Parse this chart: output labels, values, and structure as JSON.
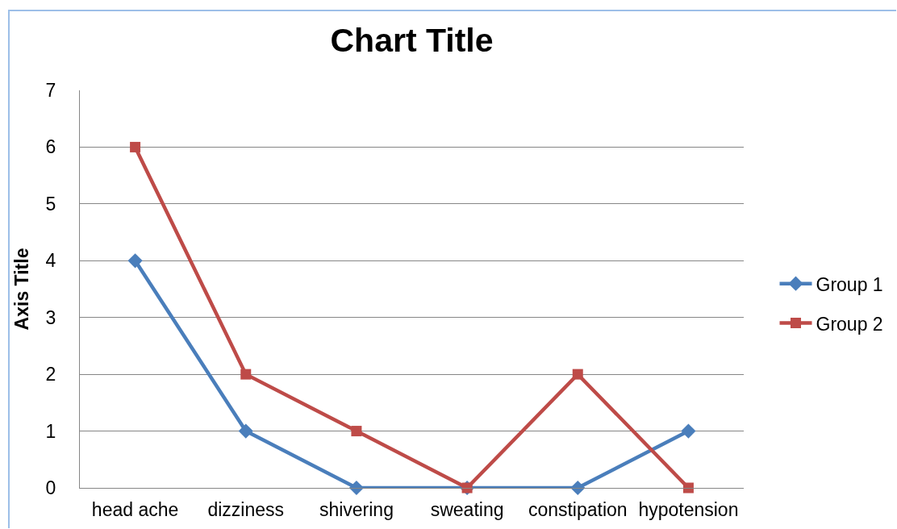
{
  "chart_data": {
    "type": "line",
    "title": "Chart Title",
    "ylabel": "Axis Title",
    "categories": [
      "head ache",
      "dizziness",
      "shivering",
      "sweating",
      "constipation",
      "hypotension"
    ],
    "series": [
      {
        "name": "Group 1",
        "color": "#4a7ebb",
        "values": [
          4,
          1,
          0,
          0,
          0,
          1
        ],
        "marker": "diamond"
      },
      {
        "name": "Group 2",
        "color": "#be4b48",
        "values": [
          6,
          2,
          1,
          0,
          2,
          0
        ],
        "marker": "square"
      }
    ],
    "ylim": [
      0,
      7
    ],
    "yticks": [
      0,
      1,
      2,
      3,
      4,
      5,
      6,
      7
    ],
    "grid": "y",
    "legend": "right",
    "line_style": "solid"
  }
}
